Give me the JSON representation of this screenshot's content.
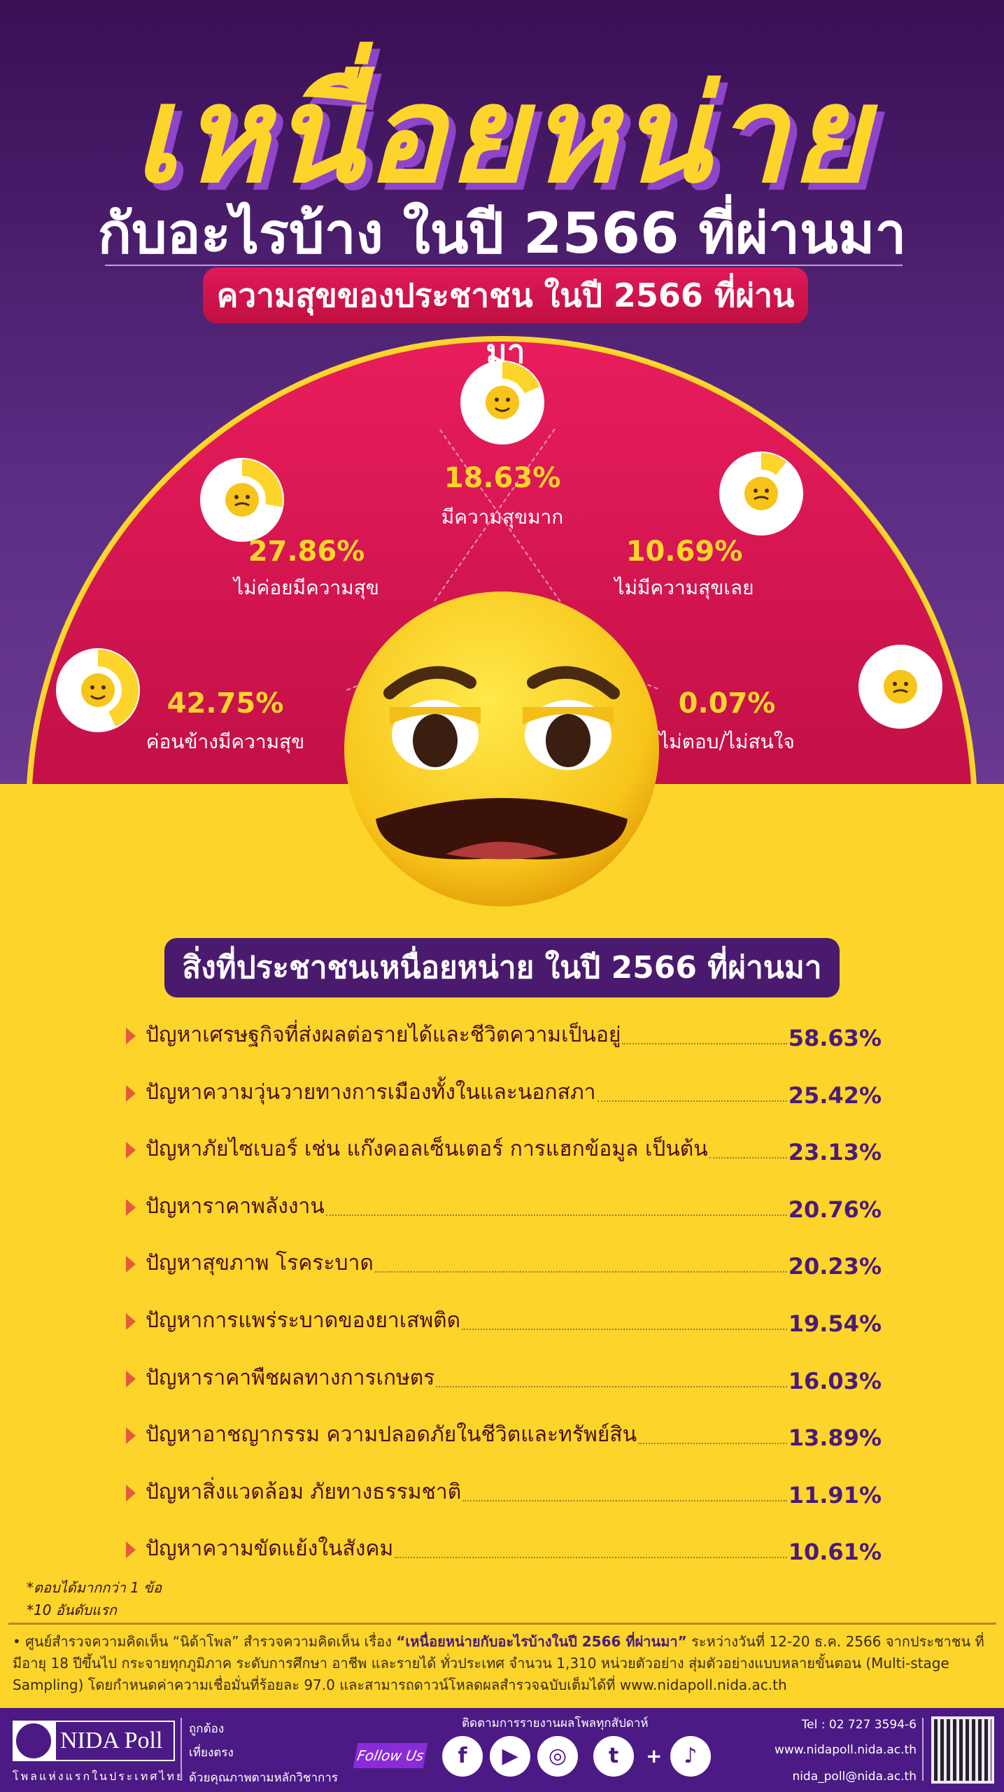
{
  "header": {
    "title": "เหนื่อยหน่าย",
    "subtitle": "กับอะไรบ้าง ในปี 2566 ที่ผ่านมา",
    "section1": "ความสุขของประชาชน ในปี 2566 ที่ผ่านมา"
  },
  "chart_data": {
    "type": "pie",
    "title": "ความสุขของประชาชน ในปี 2566 ที่ผ่านมา",
    "slices": [
      {
        "label": "ค่อนข้างมีความสุข",
        "value": 42.75,
        "pct": "42.75%",
        "emoji": "smiling-hearts-face-icon",
        "glyph": "🥰"
      },
      {
        "label": "ไม่ค่อยมีความสุข",
        "value": 27.86,
        "pct": "27.86%",
        "emoji": "sad-face-icon",
        "glyph": "😢"
      },
      {
        "label": "มีความสุขมาก",
        "value": 18.63,
        "pct": "18.63%",
        "emoji": "grinning-face-icon",
        "glyph": "😄"
      },
      {
        "label": "ไม่มีความสุขเลย",
        "value": 10.69,
        "pct": "10.69%",
        "emoji": "crying-face-icon",
        "glyph": "😭"
      },
      {
        "label": "ไม่ตอบ/ไม่สนใจ",
        "value": 0.07,
        "pct": "0.07%",
        "emoji": "unamused-face-icon",
        "glyph": "😒"
      }
    ]
  },
  "list": {
    "title": "สิ่งที่ประชาชนเหนื่อยหน่าย ในปี 2566 ที่ผ่านมา",
    "items": [
      {
        "label": "ปัญหาเศรษฐกิจที่ส่งผลต่อรายได้และชีวิตความเป็นอยู่",
        "value": "58.63%"
      },
      {
        "label": "ปัญหาความวุ่นวายทางการเมืองทั้งในและนอกสภา",
        "value": "25.42%"
      },
      {
        "label": "ปัญหาภัยไซเบอร์ เช่น แก๊งคอลเซ็นเตอร์ การแฮกข้อมูล เป็นต้น",
        "value": "23.13%"
      },
      {
        "label": "ปัญหาราคาพลังงาน",
        "value": "20.76%"
      },
      {
        "label": "ปัญหาสุขภาพ โรคระบาด",
        "value": "20.23%"
      },
      {
        "label": "ปัญหาการแพร่ระบาดของยาเสพติด",
        "value": "19.54%"
      },
      {
        "label": "ปัญหาราคาพืชผลทางการเกษตร",
        "value": "16.03%"
      },
      {
        "label": "ปัญหาอาชญากรรม ความปลอดภัยในชีวิตและทรัพย์สิน",
        "value": "13.89%"
      },
      {
        "label": "ปัญหาสิ่งแวดล้อม ภัยทางธรรมชาติ",
        "value": "11.91%"
      },
      {
        "label": "ปัญหาความขัดแย้งในสังคม",
        "value": "10.61%"
      }
    ],
    "note1": "*ตอบได้มากกว่า 1 ข้อ",
    "note2": "*10 อันดับแรก"
  },
  "footnote": {
    "p1": "• ศูนย์สำรวจความคิดเห็น “นิด้าโพล” สำรวจความคิดเห็น เรื่อง ",
    "topic": "“เหนื่อยหน่ายกับอะไรบ้างในปี 2566 ที่ผ่านมา”",
    "p2": " ระหว่างวันที่ 12-20 ธ.ค. 2566 จากประชาชน ที่มีอายุ 18 ปีขึ้นไป กระจายทุกภูมิภาค ระดับการศึกษา อาชีพ และรายได้ ทั่วประเทศ จำนวน 1,310 หน่วยตัวอย่าง สุ่มตัวอย่างแบบหลายขั้นตอน (Multi-stage Sampling) โดยกำหนดค่าความเชื่อมั่นที่ร้อยละ 97.0 และสามารถดาวน์โหลดผลสำรวจฉบับเต็มได้ที่ www.nidapoll.nida.ac.th"
  },
  "footer": {
    "logo": "NIDA Poll",
    "tagline": "โพลแห่งแรกในประเทศไทย",
    "motto": [
      "ถูกต้อง",
      "เที่ยงตรง",
      "ด้วยคุณภาพตามหลักวิชาการ"
    ],
    "follow": "Follow Us",
    "follow_head": "ติดตามการรายงานผลโพลทุกสัปดาห์",
    "social": [
      {
        "name": "facebook-icon",
        "glyph": "f"
      },
      {
        "name": "youtube-icon",
        "glyph": "▶"
      },
      {
        "name": "instagram-icon",
        "glyph": "◎"
      },
      {
        "name": "twitter-icon",
        "glyph": "t"
      },
      {
        "name": "tiktok-icon",
        "glyph": "♪"
      }
    ],
    "plus": "+",
    "tel": "Tel : 02 727 3594-6",
    "web": "www.nidapoll.nida.ac.th",
    "email": "nida_poll@nida.ac.th"
  },
  "colors": {
    "purple": "#4b1a85",
    "crimson": "#d0174e",
    "yellow": "#fdd52a"
  }
}
